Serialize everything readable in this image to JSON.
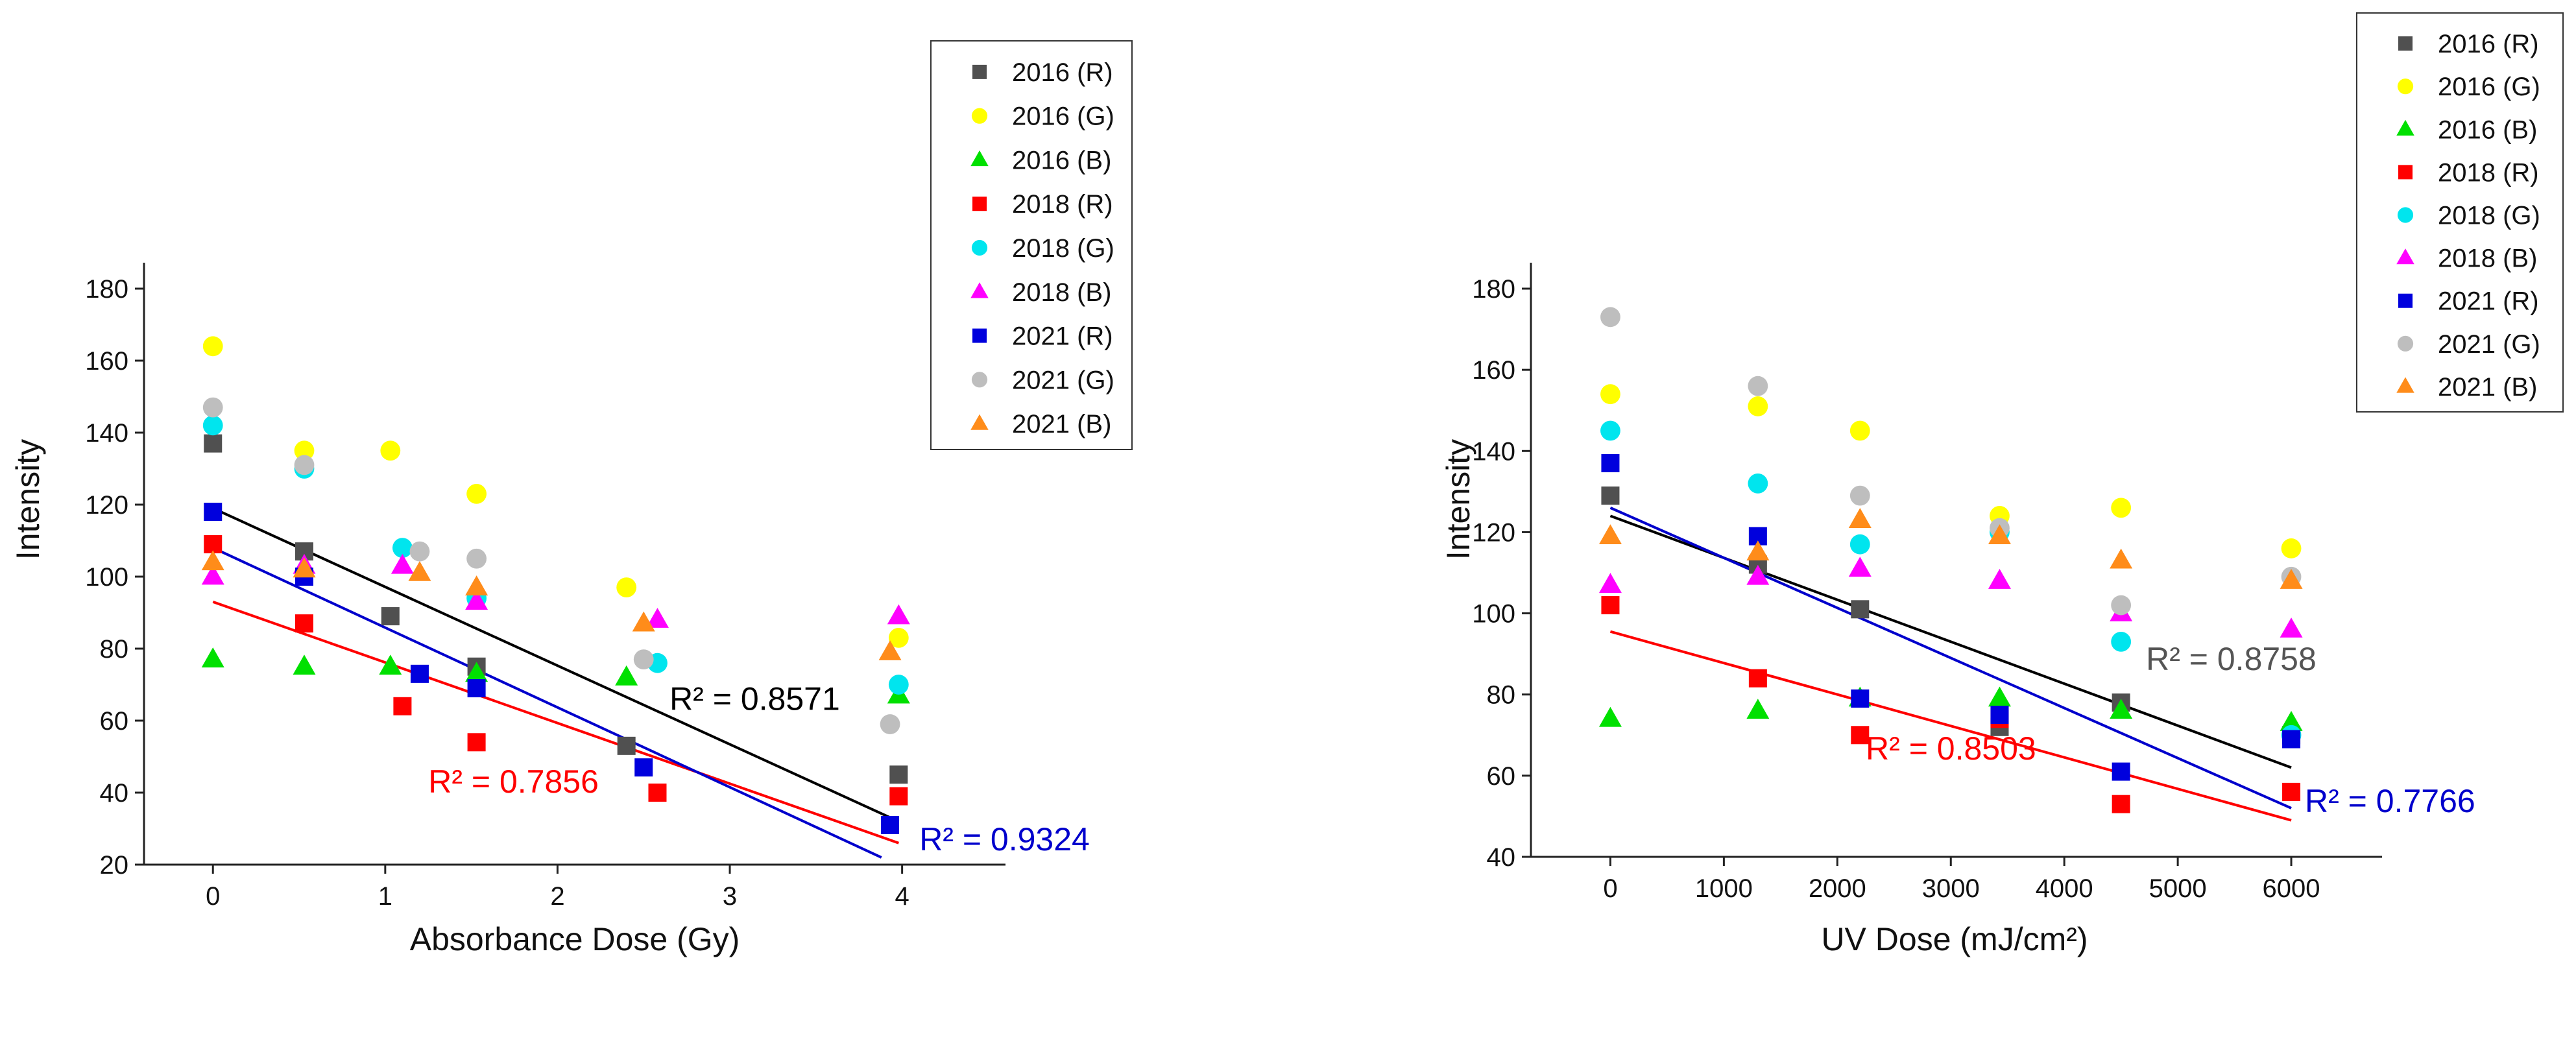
{
  "chart_data": [
    {
      "type": "scatter",
      "id": "absorbance",
      "title": "",
      "xlabel": "Absorbance Dose (Gy)",
      "ylabel": "Intensity",
      "xlim": [
        -0.4,
        4.6
      ],
      "ylim": [
        20,
        180
      ],
      "xticks": [
        0,
        1,
        2,
        3,
        4
      ],
      "yticks": [
        20,
        40,
        60,
        80,
        100,
        120,
        140,
        160,
        180
      ],
      "grid": false,
      "legend_position": "top-right",
      "series": [
        {
          "name": "2016 (R)",
          "marker": "square",
          "color": "#505050",
          "points": [
            [
              0,
              137
            ],
            [
              0.53,
              107
            ],
            [
              1.03,
              89
            ],
            [
              1.53,
              75
            ],
            [
              2.4,
              53
            ],
            [
              3.98,
              45
            ]
          ]
        },
        {
          "name": "2016 (G)",
          "marker": "circle",
          "color": "#ffff00",
          "points": [
            [
              0,
              164
            ],
            [
              0.53,
              135
            ],
            [
              1.03,
              135
            ],
            [
              1.53,
              123
            ],
            [
              2.4,
              97
            ],
            [
              3.98,
              83
            ]
          ]
        },
        {
          "name": "2016 (B)",
          "marker": "triangle",
          "color": "#00e000",
          "points": [
            [
              0,
              77
            ],
            [
              0.53,
              75
            ],
            [
              1.03,
              75
            ],
            [
              1.53,
              73
            ],
            [
              2.4,
              72
            ],
            [
              3.98,
              67
            ]
          ]
        },
        {
          "name": "2018 (R)",
          "marker": "square",
          "color": "#ff0000",
          "points": [
            [
              0,
              109
            ],
            [
              0.53,
              87
            ],
            [
              1.1,
              64
            ],
            [
              1.53,
              54
            ],
            [
              2.58,
              40
            ],
            [
              3.98,
              39
            ]
          ]
        },
        {
          "name": "2018 (G)",
          "marker": "circle",
          "color": "#00e5ee",
          "points": [
            [
              0,
              142
            ],
            [
              0.53,
              130
            ],
            [
              1.1,
              108
            ],
            [
              1.53,
              94
            ],
            [
              2.58,
              76
            ],
            [
              3.98,
              70
            ]
          ]
        },
        {
          "name": "2018 (B)",
          "marker": "triangle",
          "color": "#ff00ff",
          "points": [
            [
              0,
              100
            ],
            [
              0.53,
              103
            ],
            [
              1.1,
              103
            ],
            [
              1.53,
              93
            ],
            [
              2.58,
              88
            ],
            [
              3.98,
              89
            ]
          ]
        },
        {
          "name": "2021 (R)",
          "marker": "square",
          "color": "#0000dd",
          "points": [
            [
              0,
              118
            ],
            [
              0.53,
              100
            ],
            [
              1.2,
              73
            ],
            [
              1.53,
              69
            ],
            [
              2.5,
              47
            ],
            [
              3.93,
              31
            ]
          ]
        },
        {
          "name": "2021 (G)",
          "marker": "circle",
          "color": "#bebebe",
          "points": [
            [
              0,
              147
            ],
            [
              0.53,
              131
            ],
            [
              1.2,
              107
            ],
            [
              1.53,
              105
            ],
            [
              2.5,
              77
            ],
            [
              3.93,
              59
            ]
          ]
        },
        {
          "name": "2021 (B)",
          "marker": "triangle",
          "color": "#ff8c1a",
          "points": [
            [
              0,
              104
            ],
            [
              0.53,
              102
            ],
            [
              1.2,
              101
            ],
            [
              1.53,
              97
            ],
            [
              2.5,
              87
            ],
            [
              3.93,
              79
            ]
          ]
        }
      ],
      "fit_lines": [
        {
          "color": "#000000",
          "x": [
            0,
            3.98
          ],
          "y": [
            119,
            32
          ]
        },
        {
          "color": "#ff0000",
          "x": [
            0,
            3.98
          ],
          "y": [
            93,
            26
          ]
        },
        {
          "color": "#0000cc",
          "x": [
            0,
            3.88
          ],
          "y": [
            108,
            22
          ]
        }
      ],
      "annotations": [
        {
          "text": "R² = 0.8571",
          "color": "#000000",
          "x": 2.65,
          "y": 63
        },
        {
          "text": "R² = 0.7856",
          "color": "#ff0000",
          "x": 1.25,
          "y": 40
        },
        {
          "text": "R² = 0.9324",
          "color": "#0000cc",
          "x": 4.1,
          "y": 24
        }
      ]
    },
    {
      "type": "scatter",
      "id": "uv",
      "title": "",
      "xlabel": "UV Dose (mJ/cm²)",
      "ylabel": "Intensity",
      "xlim": [
        -700,
        6800
      ],
      "ylim": [
        40,
        180
      ],
      "xticks": [
        0,
        1000,
        2000,
        3000,
        4000,
        5000,
        6000
      ],
      "yticks": [
        40,
        60,
        80,
        100,
        120,
        140,
        160,
        180
      ],
      "grid": false,
      "legend_position": "top-right",
      "series": [
        {
          "name": "2016 (R)",
          "marker": "square",
          "color": "#505050",
          "points": [
            [
              0,
              129
            ],
            [
              1300,
              112
            ],
            [
              2200,
              101
            ],
            [
              3430,
              72
            ],
            [
              4500,
              78
            ],
            [
              6000,
              70
            ]
          ]
        },
        {
          "name": "2016 (G)",
          "marker": "circle",
          "color": "#ffff00",
          "points": [
            [
              0,
              154
            ],
            [
              1300,
              151
            ],
            [
              2200,
              145
            ],
            [
              3430,
              124
            ],
            [
              4500,
              126
            ],
            [
              6000,
              116
            ]
          ]
        },
        {
          "name": "2016 (B)",
          "marker": "triangle",
          "color": "#00e000",
          "points": [
            [
              0,
              74
            ],
            [
              1300,
              76
            ],
            [
              2200,
              79
            ],
            [
              3430,
              79
            ],
            [
              4500,
              76
            ],
            [
              6000,
              73
            ]
          ]
        },
        {
          "name": "2018 (R)",
          "marker": "square",
          "color": "#ff0000",
          "points": [
            [
              0,
              102
            ],
            [
              1300,
              84
            ],
            [
              2200,
              70
            ],
            [
              3430,
              74
            ],
            [
              4500,
              53
            ],
            [
              6000,
              56
            ]
          ]
        },
        {
          "name": "2018 (G)",
          "marker": "circle",
          "color": "#00e5ee",
          "points": [
            [
              0,
              145
            ],
            [
              1300,
              132
            ],
            [
              2200,
              117
            ],
            [
              3430,
              120
            ],
            [
              4500,
              93
            ],
            [
              6000,
              70
            ]
          ]
        },
        {
          "name": "2018 (B)",
          "marker": "triangle",
          "color": "#ff00ff",
          "points": [
            [
              0,
              107
            ],
            [
              1300,
              109
            ],
            [
              2200,
              111
            ],
            [
              3430,
              108
            ],
            [
              4500,
              100
            ],
            [
              6000,
              96
            ]
          ]
        },
        {
          "name": "2021 (R)",
          "marker": "square",
          "color": "#0000dd",
          "points": [
            [
              0,
              137
            ],
            [
              1300,
              119
            ],
            [
              2200,
              79
            ],
            [
              3430,
              75
            ],
            [
              4500,
              61
            ],
            [
              6000,
              69
            ]
          ]
        },
        {
          "name": "2021 (G)",
          "marker": "circle",
          "color": "#bebebe",
          "points": [
            [
              0,
              173
            ],
            [
              1300,
              156
            ],
            [
              2200,
              129
            ],
            [
              3430,
              121
            ],
            [
              4500,
              102
            ],
            [
              6000,
              109
            ]
          ]
        },
        {
          "name": "2021 (B)",
          "marker": "triangle",
          "color": "#ff8c1a",
          "points": [
            [
              0,
              119
            ],
            [
              1300,
              115
            ],
            [
              2200,
              123
            ],
            [
              3430,
              119
            ],
            [
              4500,
              113
            ],
            [
              6000,
              108
            ]
          ]
        }
      ],
      "fit_lines": [
        {
          "color": "#000000",
          "x": [
            0,
            6000
          ],
          "y": [
            124,
            62
          ]
        },
        {
          "color": "#ff0000",
          "x": [
            0,
            6000
          ],
          "y": [
            95.5,
            49
          ]
        },
        {
          "color": "#0000cc",
          "x": [
            0,
            6000
          ],
          "y": [
            126,
            52
          ]
        }
      ],
      "annotations": [
        {
          "text": "R² = 0.8758",
          "color": "#555555",
          "x": 4720,
          "y": 86
        },
        {
          "text": "R² = 0.8503",
          "color": "#ff0000",
          "x": 2250,
          "y": 64
        },
        {
          "text": "R² = 0.7766",
          "color": "#0000cc",
          "x": 6120,
          "y": 51
        }
      ]
    }
  ]
}
